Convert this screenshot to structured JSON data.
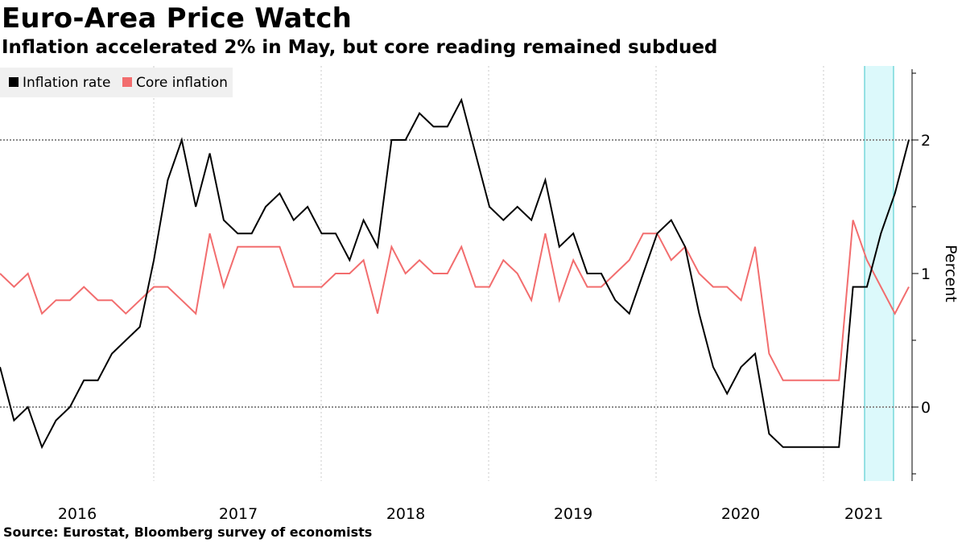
{
  "title": "Euro-Area Price Watch",
  "subtitle": "Inflation accelerated 2% in May, but core reading remained subdued",
  "source": "Source: Eurostat, Bloomberg survey of economists",
  "colors": {
    "inflation": "#000000",
    "core": "#f26d6e",
    "forecast_fill": "#dcf9fb",
    "forecast_border": "#3cc6c8",
    "legend_bg": "#f0f0f0"
  },
  "chart_data": {
    "type": "line",
    "title": "Euro-Area Price Watch",
    "subtitle": "Inflation accelerated 2% in May, but core reading remained subdued",
    "ylabel": "Percent",
    "xlabel": "",
    "ylim": [
      -0.55,
      2.55
    ],
    "yticks": [
      0,
      1,
      2
    ],
    "ytick_labels": [
      "0",
      "1",
      "2"
    ],
    "xticks": [
      "2016",
      "2017",
      "2018",
      "2019",
      "2020",
      "2021"
    ],
    "period": "monthly, Jan 2016 - May 2021",
    "forecast_period": [
      "Feb 2021",
      "May 2021"
    ],
    "legend": [
      "Inflation rate",
      "Core inflation"
    ],
    "legend_position": "top-left",
    "gridlines": "dotted at 0 and 2; dotted vertical at year boundaries",
    "series": [
      {
        "name": "Inflation rate",
        "values": [
          0.3,
          -0.1,
          0.0,
          -0.3,
          -0.1,
          0.0,
          0.2,
          0.2,
          0.4,
          0.5,
          0.6,
          1.1,
          1.7,
          2.0,
          1.5,
          1.9,
          1.4,
          1.3,
          1.3,
          1.5,
          1.6,
          1.4,
          1.5,
          1.3,
          1.3,
          1.1,
          1.4,
          1.2,
          2.0,
          2.0,
          2.2,
          2.1,
          2.1,
          2.3,
          1.9,
          1.5,
          1.4,
          1.5,
          1.4,
          1.7,
          1.2,
          1.3,
          1.0,
          1.0,
          0.8,
          0.7,
          1.0,
          1.3,
          1.4,
          1.2,
          0.7,
          0.3,
          0.1,
          0.3,
          0.4,
          -0.2,
          -0.3,
          -0.3,
          -0.3,
          -0.3,
          -0.3,
          0.9,
          0.9,
          1.3,
          1.6,
          2.0
        ]
      },
      {
        "name": "Core inflation",
        "values": [
          1.0,
          0.9,
          1.0,
          0.7,
          0.8,
          0.8,
          0.9,
          0.8,
          0.8,
          0.7,
          0.8,
          0.9,
          0.9,
          0.8,
          0.7,
          1.3,
          0.9,
          1.2,
          1.2,
          1.2,
          1.2,
          0.9,
          0.9,
          0.9,
          1.0,
          1.0,
          1.1,
          0.7,
          1.2,
          1.0,
          1.1,
          1.0,
          1.0,
          1.2,
          0.9,
          0.9,
          1.1,
          1.0,
          0.8,
          1.3,
          0.8,
          1.1,
          0.9,
          0.9,
          1.0,
          1.1,
          1.3,
          1.3,
          1.1,
          1.2,
          1.0,
          0.9,
          0.9,
          0.8,
          1.2,
          0.4,
          0.2,
          0.2,
          0.2,
          0.2,
          0.2,
          1.4,
          1.1,
          0.9,
          0.7,
          0.9
        ]
      }
    ]
  }
}
